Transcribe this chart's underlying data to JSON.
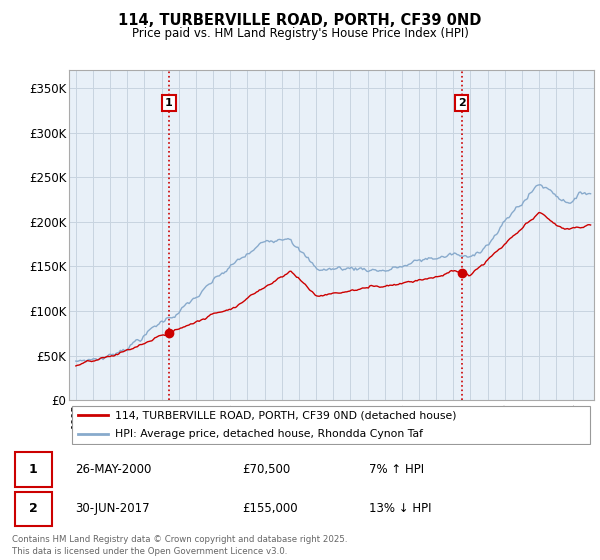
{
  "title_line1": "114, TURBERVILLE ROAD, PORTH, CF39 0ND",
  "title_line2": "Price paid vs. HM Land Registry's House Price Index (HPI)",
  "ylim": [
    0,
    370000
  ],
  "yticks": [
    0,
    50000,
    100000,
    150000,
    200000,
    250000,
    300000,
    350000
  ],
  "ytick_labels": [
    "£0",
    "£50K",
    "£100K",
    "£150K",
    "£200K",
    "£250K",
    "£300K",
    "£350K"
  ],
  "marker1_year": 2000.4,
  "marker1_date": "26-MAY-2000",
  "marker1_price": 70500,
  "marker1_label": "7% ↑ HPI",
  "marker2_year": 2017.5,
  "marker2_date": "30-JUN-2017",
  "marker2_price": 155000,
  "marker2_label": "13% ↓ HPI",
  "legend_line1": "114, TURBERVILLE ROAD, PORTH, CF39 0ND (detached house)",
  "legend_line2": "HPI: Average price, detached house, Rhondda Cynon Taf",
  "footnote": "Contains HM Land Registry data © Crown copyright and database right 2025.\nThis data is licensed under the Open Government Licence v3.0.",
  "red_color": "#cc0000",
  "blue_color": "#88aacc",
  "chart_bg": "#e8f0f8",
  "grid_color": "#c8d4e0"
}
